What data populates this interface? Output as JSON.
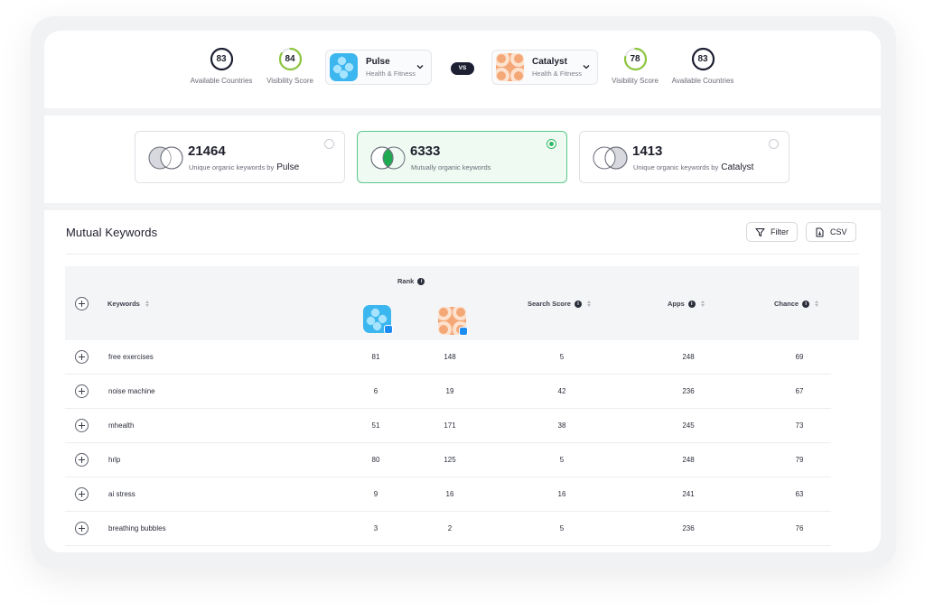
{
  "header": {
    "left_available": {
      "value": "83",
      "label": "Available Countries"
    },
    "left_visibility": {
      "value": "84",
      "label": "Visibility Score",
      "fraction": 0.84
    },
    "app_left": {
      "name": "Pulse",
      "category": "Health & Fitness"
    },
    "vs_label": "VS",
    "app_right": {
      "name": "Catalyst",
      "category": "Health & Fitness"
    },
    "right_visibility": {
      "value": "78",
      "label": "Visibility Score",
      "fraction": 0.78
    },
    "right_available": {
      "value": "83",
      "label": "Available Countries"
    }
  },
  "selectors": [
    {
      "number": "21464",
      "label": "Unique organic keywords by",
      "app": "Pulse",
      "selected": false
    },
    {
      "number": "6333",
      "label": "Mutually organic keywords",
      "app": "",
      "selected": true
    },
    {
      "number": "1413",
      "label": "Unique organic keywords by",
      "app": "Catalyst",
      "selected": false
    }
  ],
  "section": {
    "title": "Mutual Keywords",
    "filter_label": "Filter",
    "csv_label": "CSV"
  },
  "table": {
    "headers": {
      "rank": "Rank",
      "keywords": "Keywords",
      "search_score": "Search Score",
      "apps": "Apps",
      "chance": "Chance"
    },
    "rows": [
      {
        "keyword": "free exercises",
        "rank_a": "81",
        "rank_b": "148",
        "search_score": "5",
        "apps": "248",
        "chance": "69"
      },
      {
        "keyword": "noise machine",
        "rank_a": "6",
        "rank_b": "19",
        "search_score": "42",
        "apps": "236",
        "chance": "67"
      },
      {
        "keyword": "mhealth",
        "rank_a": "51",
        "rank_b": "171",
        "search_score": "38",
        "apps": "245",
        "chance": "73"
      },
      {
        "keyword": "hrlp",
        "rank_a": "80",
        "rank_b": "125",
        "search_score": "5",
        "apps": "248",
        "chance": "79"
      },
      {
        "keyword": "ai stress",
        "rank_a": "9",
        "rank_b": "16",
        "search_score": "16",
        "apps": "241",
        "chance": "63"
      },
      {
        "keyword": "breathing bubbles",
        "rank_a": "3",
        "rank_b": "2",
        "search_score": "5",
        "apps": "236",
        "chance": "76"
      }
    ]
  },
  "colors": {
    "accent_green": "#2fb865",
    "ring_green": "#8cc63f",
    "pulse_blue": "#3bb6ef",
    "catalyst_orange": "#f4a878"
  },
  "icons": {
    "filter": "funnel-icon",
    "csv": "document-download-icon",
    "expand": "plus-circle-icon",
    "info": "info-icon",
    "sort": "sort-arrows-icon",
    "dropdown": "chevron-down-icon"
  }
}
